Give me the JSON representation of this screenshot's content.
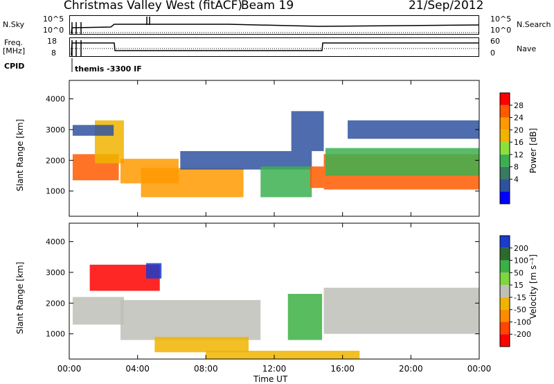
{
  "header": {
    "station": "Christmas Valley West (fitACF)",
    "beam": "Beam 19",
    "date": "21/Sep/2012"
  },
  "noise_panel": {
    "left_label": "N.Sky",
    "right_label": "N.Search",
    "left_ticks": [
      "10^5",
      "10^0"
    ],
    "right_ticks": [
      "10^5",
      "10^0"
    ]
  },
  "freq_panel": {
    "left_label_1": "Freq.",
    "left_label_2": "[MHz]",
    "right_label": "Nave",
    "left_ticks": [
      "18",
      "8"
    ],
    "right_ticks": [
      "60",
      "0"
    ]
  },
  "cpid": {
    "label": "CPID",
    "value": "themis -3300 IF"
  },
  "power_colorbar": {
    "label": "Power [dB]",
    "ticks": [
      "28",
      "24",
      "20",
      "16",
      "12",
      "8",
      "4"
    ],
    "colors": [
      "#ff0000",
      "#ff5a00",
      "#ff9a00",
      "#f0b400",
      "#8ce03c",
      "#3cb050",
      "#3a7a60",
      "#2f52a0",
      "#0000ff"
    ]
  },
  "velocity_colorbar": {
    "label": "Velocity [m s⁻¹]",
    "ticks": [
      "200",
      "100",
      "50",
      "15",
      "-15",
      "-50",
      "-100",
      "-200"
    ],
    "colors": [
      "#1a3ccc",
      "#2d6b2d",
      "#3cb043",
      "#7fd640",
      "#c0c0b8",
      "#f0b400",
      "#ff8c00",
      "#ff4500",
      "#ff0000"
    ]
  },
  "chart_data": {
    "type": "heatmap",
    "xlabel": "Time UT",
    "ylabel_power": "Slant Range [km]",
    "ylabel_velocity": "Slant Range [km]",
    "x_ticks": [
      "00:00",
      "04:00",
      "08:00",
      "12:00",
      "16:00",
      "20:00",
      "00:00"
    ],
    "x_range_hours": [
      0,
      24
    ],
    "y_ticks": [
      "1000",
      "2000",
      "3000",
      "4000"
    ],
    "y_range_km": [
      180,
      4600
    ],
    "power_regions": [
      {
        "t0": 0.2,
        "t1": 2.9,
        "r0": 1350,
        "r1": 2200,
        "level": 28
      },
      {
        "t0": 1.5,
        "t1": 3.2,
        "r0": 1900,
        "r1": 3300,
        "level": 20
      },
      {
        "t0": 0.2,
        "t1": 2.6,
        "r0": 2800,
        "r1": 3150,
        "level": 8
      },
      {
        "t0": 3.0,
        "t1": 6.4,
        "r0": 1250,
        "r1": 2050,
        "level": 24
      },
      {
        "t0": 4.2,
        "t1": 10.2,
        "r0": 800,
        "r1": 1750,
        "level": 24
      },
      {
        "t0": 6.5,
        "t1": 14.2,
        "r0": 1700,
        "r1": 2300,
        "level": 8
      },
      {
        "t0": 11.2,
        "t1": 14.2,
        "r0": 800,
        "r1": 1800,
        "level": 12
      },
      {
        "t0": 13.0,
        "t1": 14.9,
        "r0": 2300,
        "r1": 3600,
        "level": 8
      },
      {
        "t0": 14.1,
        "t1": 14.9,
        "r0": 1100,
        "r1": 1800,
        "level": 28
      },
      {
        "t0": 14.9,
        "t1": 24.0,
        "r0": 1050,
        "r1": 2200,
        "level": 28
      },
      {
        "t0": 15.0,
        "t1": 24.0,
        "r0": 1500,
        "r1": 2400,
        "level": 12
      },
      {
        "t0": 16.3,
        "t1": 24.0,
        "r0": 2700,
        "r1": 3300,
        "level": 8
      }
    ],
    "velocity_regions": [
      {
        "t0": 0.2,
        "t1": 3.2,
        "r0": 1300,
        "r1": 2200,
        "level": 0
      },
      {
        "t0": 3.0,
        "t1": 11.2,
        "r0": 800,
        "r1": 2100,
        "level": 0
      },
      {
        "t0": 1.2,
        "t1": 5.3,
        "r0": 2400,
        "r1": 3250,
        "level": -200
      },
      {
        "t0": 4.5,
        "t1": 5.4,
        "r0": 2800,
        "r1": 3300,
        "level": 200
      },
      {
        "t0": 5.0,
        "t1": 10.5,
        "r0": 400,
        "r1": 900,
        "level": -50
      },
      {
        "t0": 12.8,
        "t1": 14.8,
        "r0": 800,
        "r1": 2300,
        "level": 50
      },
      {
        "t0": 14.9,
        "t1": 24.0,
        "r0": 1000,
        "r1": 2500,
        "level": 0
      },
      {
        "t0": 8.0,
        "t1": 17.0,
        "r0": 180,
        "r1": 450,
        "level": -50
      }
    ]
  }
}
